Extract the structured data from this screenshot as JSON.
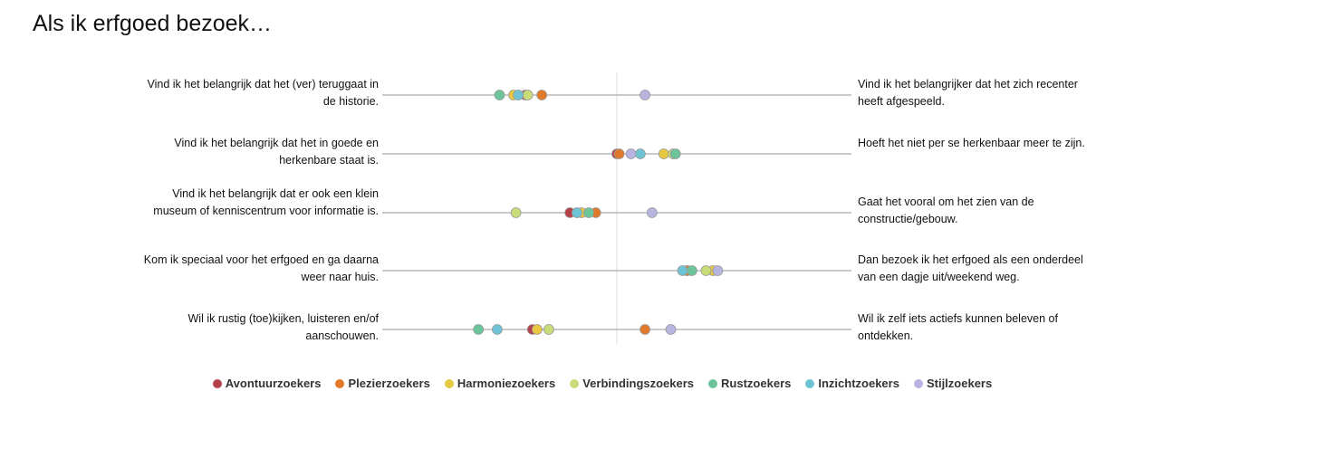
{
  "title": "Als ik erfgoed bezoek…",
  "chart_data": {
    "type": "scatter",
    "title": "Als ik erfgoed bezoek…",
    "xlim": [
      -1,
      1
    ],
    "grid": false,
    "legend_position": "bottom",
    "rows": [
      {
        "left": "Vind ik het belangrijk dat het (ver) teruggaat in de historie.",
        "right": "Vind ik het belangrijker dat het zich recenter heeft afgespeeld."
      },
      {
        "left": "Vind ik het belangrijk dat het in goede en herkenbare staat is.",
        "right": "Hoeft het niet per se herkenbaar meer te zijn."
      },
      {
        "left": "Vind ik het belangrijk dat er ook een klein museum of kenniscentrum voor informatie is.",
        "right": "Gaat het vooral om het zien van de constructie/gebouw."
      },
      {
        "left": "Kom ik speciaal voor het erfgoed en ga daarna weer naar huis.",
        "right": "Dan bezoek ik het erfgoed als een onderdeel van een dagje uit/weekend weg."
      },
      {
        "left": "Wil ik rustig (toe)kijken, luisteren en/of aanschouwen.",
        "right": "Wil ik zelf iets actiefs kunnen beleven of ontdekken."
      }
    ],
    "series": [
      {
        "name": "Avontuurzoekers",
        "color": "#b5424a",
        "values": [
          -0.39,
          0.0,
          -0.2,
          0.3,
          -0.36
        ]
      },
      {
        "name": "Plezierzoekers",
        "color": "#e07a2a",
        "values": [
          -0.32,
          0.01,
          -0.09,
          0.3,
          0.12
        ]
      },
      {
        "name": "Harmoniezoekers",
        "color": "#e8c840",
        "values": [
          -0.44,
          0.2,
          -0.15,
          0.41,
          -0.34
        ]
      },
      {
        "name": "Verbindingszoekers",
        "color": "#c8dc78",
        "values": [
          -0.38,
          0.24,
          -0.43,
          0.38,
          -0.29
        ]
      },
      {
        "name": "Rustzoekers",
        "color": "#6cc49a",
        "values": [
          -0.5,
          0.25,
          -0.12,
          0.32,
          -0.59
        ]
      },
      {
        "name": "Inzichtzoekers",
        "color": "#6ec4d4",
        "values": [
          -0.42,
          0.1,
          -0.17,
          0.28,
          -0.51
        ]
      },
      {
        "name": "Stijlzoekers",
        "color": "#b8b4e0",
        "values": [
          0.12,
          0.06,
          0.15,
          0.43,
          0.23
        ]
      }
    ]
  }
}
